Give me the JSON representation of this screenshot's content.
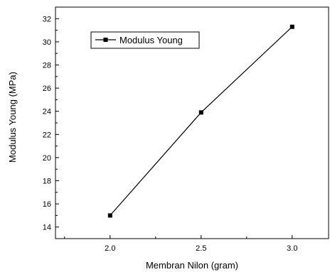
{
  "chart_data": {
    "type": "line",
    "xlabel": "Membran Nilon (gram)",
    "ylabel": "Modulus Young (MPa)",
    "xlim": [
      1.7,
      3.2
    ],
    "ylim": [
      13,
      33
    ],
    "x_ticks": [
      "2.0",
      "2.5",
      "3.0"
    ],
    "x_tick_values": [
      2.0,
      2.5,
      3.0
    ],
    "y_ticks": [
      "14",
      "16",
      "18",
      "20",
      "22",
      "24",
      "26",
      "28",
      "30",
      "32"
    ],
    "y_tick_values": [
      14,
      16,
      18,
      20,
      22,
      24,
      26,
      28,
      30,
      32
    ],
    "series": [
      {
        "name": "Modulus Young",
        "marker": "square",
        "color": "#000000",
        "x": [
          2.0,
          2.5,
          3.0
        ],
        "y": [
          15.0,
          23.9,
          31.3
        ]
      }
    ],
    "legend": "top-left",
    "grid": false
  }
}
